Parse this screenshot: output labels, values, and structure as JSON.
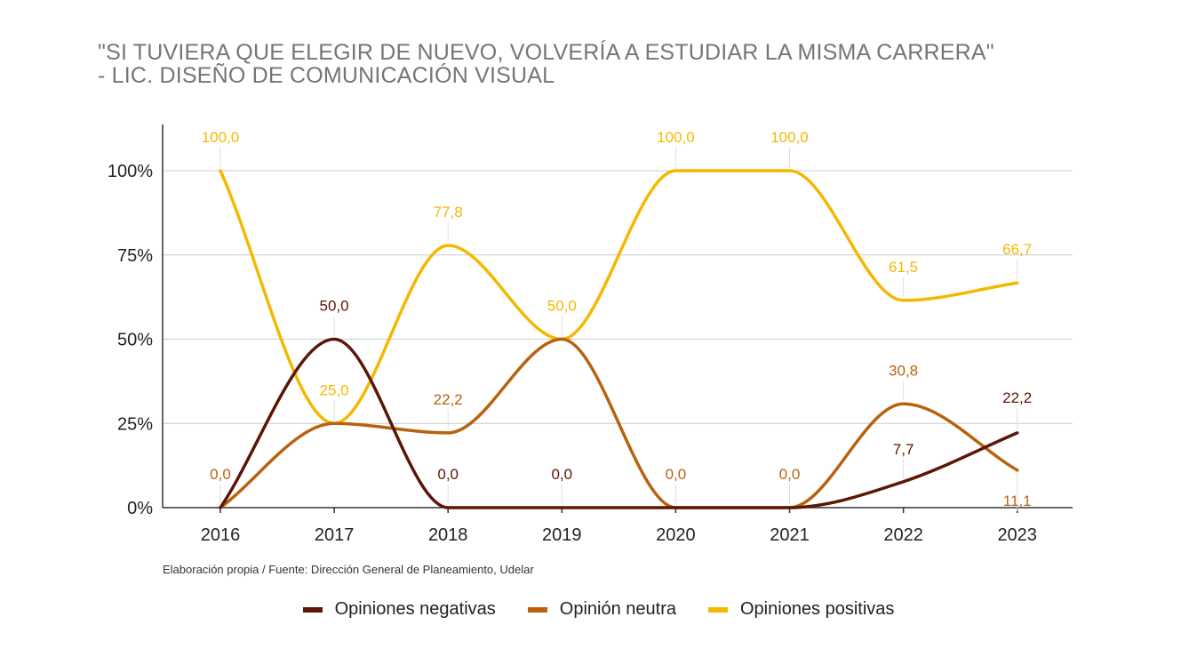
{
  "chart_data": {
    "type": "line",
    "title_lines": [
      "\"SI TUVIERA QUE ELEGIR DE NUEVO, VOLVERÍA A ESTUDIAR LA MISMA CARRERA\"",
      "- LIC. DISEÑO DE COMUNICACIÓN VISUAL"
    ],
    "x": [
      "2016",
      "2017",
      "2018",
      "2019",
      "2020",
      "2021",
      "2022",
      "2023"
    ],
    "y_ticks": [
      "0%",
      "25%",
      "50%",
      "75%",
      "100%"
    ],
    "ylim": [
      0,
      100
    ],
    "grid": true,
    "legend_position": "bottom",
    "series": [
      {
        "name": "Opiniones negativas",
        "color": "#5c1605",
        "values": [
          0,
          50,
          0,
          0,
          0,
          0,
          7.7,
          22.2
        ],
        "labels": [
          "",
          "50,0",
          "0,0",
          "0,0",
          "",
          "",
          "7,7",
          "22,2"
        ]
      },
      {
        "name": "Opinión neutra",
        "color": "#b8620f",
        "values": [
          0,
          25,
          22.2,
          50,
          0,
          0,
          30.8,
          11.1
        ],
        "labels": [
          "0,0",
          "",
          "22,2",
          "",
          "0,0",
          "0,0",
          "30,8",
          "11,1"
        ]
      },
      {
        "name": "Opiniones positivas",
        "color": "#f5b800",
        "values": [
          100,
          25,
          77.8,
          50,
          100,
          100,
          61.5,
          66.7
        ],
        "labels": [
          "100,0",
          "25,0",
          "77,8",
          "50,0",
          "100,0",
          "100,0",
          "61,5",
          "66,7"
        ]
      }
    ]
  },
  "source_note": "Elaboración propia / Fuente: Dirección General de Planeamiento, Udelar"
}
